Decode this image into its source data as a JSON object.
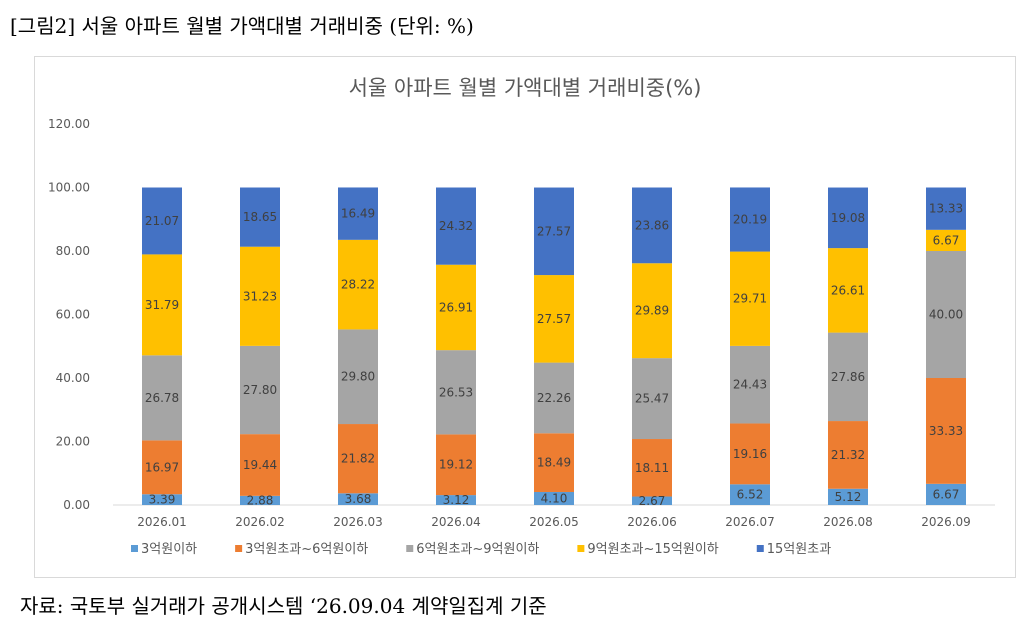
{
  "figure_caption": "[그림2] 서울 아파트 월별 가액대별 거래비중 (단위: %)",
  "source_note": "자료: 국토부 실거래가 공개시스템 ‘26.09.04 계약일집계 기준",
  "colors": {
    "3억원이하": "#5b9bd5",
    "3억원초과~6억원이하": "#ed7d31",
    "6억원초과~9억원이하": "#a5a5a5",
    "9억원초과~15억원이하": "#ffc000",
    "15억원초과": "#4472c4"
  },
  "chart_data": {
    "type": "bar",
    "stacked": true,
    "title": "서울 아파트 월별 가액대별 거래비중(%)",
    "xlabel": "",
    "ylabel": "",
    "ylim": [
      0,
      120
    ],
    "yticks": [
      "0.00",
      "20.00",
      "40.00",
      "60.00",
      "80.00",
      "100.00",
      "120.00"
    ],
    "grid": false,
    "legend_position": "bottom",
    "categories": [
      "2026.01",
      "2026.02",
      "2026.03",
      "2026.04",
      "2026.05",
      "2026.06",
      "2026.07",
      "2026.08",
      "2026.09"
    ],
    "series": [
      {
        "name": "3억원이하",
        "values": [
          3.39,
          2.88,
          3.68,
          3.12,
          4.1,
          2.67,
          6.52,
          5.12,
          6.67
        ],
        "labels": [
          "3.39",
          "2.88",
          "3.68",
          "3.12",
          "4.10",
          "2.67",
          "6.52",
          "5.12",
          "6.67"
        ]
      },
      {
        "name": "3억원초과~6억원이하",
        "values": [
          16.97,
          19.44,
          21.82,
          19.12,
          18.49,
          18.11,
          19.16,
          21.32,
          33.33
        ],
        "labels": [
          "16.97",
          "19.44",
          "21.82",
          "19.12",
          "18.49",
          "18.11",
          "19.16",
          "21.32",
          "33.33"
        ]
      },
      {
        "name": "6억원초과~9억원이하",
        "values": [
          26.78,
          27.8,
          29.8,
          26.53,
          22.26,
          25.47,
          24.43,
          27.86,
          40.0
        ],
        "labels": [
          "26.78",
          "27.80",
          "29.80",
          "26.53",
          "22.26",
          "25.47",
          "24.43",
          "27.86",
          "40.00"
        ]
      },
      {
        "name": "9억원초과~15억원이하",
        "values": [
          31.79,
          31.23,
          28.22,
          26.91,
          27.57,
          29.89,
          29.71,
          26.61,
          6.67
        ],
        "labels": [
          "31.79",
          "31.23",
          "28.22",
          "26.91",
          "27.57",
          "29.89",
          "29.71",
          "26.61",
          "6.67"
        ]
      },
      {
        "name": "15억원초과",
        "values": [
          21.07,
          18.65,
          16.49,
          24.32,
          27.57,
          23.86,
          20.19,
          19.08,
          13.33
        ],
        "labels": [
          "21.07",
          "18.65",
          "16.49",
          "24.32",
          "27.57",
          "23.86",
          "20.19",
          "19.08",
          "13.33"
        ]
      }
    ]
  }
}
